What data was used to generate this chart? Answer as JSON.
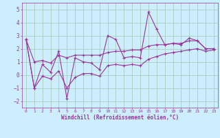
{
  "title": "",
  "xlabel": "Windchill (Refroidissement éolien,°C)",
  "bg_color": "#cceeff",
  "grid_color": "#aaccbb",
  "line_color": "#993399",
  "xlim": [
    -0.5,
    23.5
  ],
  "ylim": [
    -2.5,
    5.5
  ],
  "xticks": [
    0,
    1,
    2,
    3,
    4,
    5,
    6,
    7,
    8,
    9,
    10,
    11,
    12,
    13,
    14,
    15,
    16,
    17,
    18,
    19,
    20,
    21,
    22,
    23
  ],
  "yticks": [
    -2,
    -1,
    0,
    1,
    2,
    3,
    4,
    5
  ],
  "x": [
    0,
    1,
    2,
    3,
    4,
    5,
    6,
    7,
    8,
    9,
    10,
    11,
    12,
    13,
    14,
    15,
    16,
    17,
    18,
    19,
    20,
    21,
    22,
    23
  ],
  "y_main": [
    2.7,
    -1.0,
    0.8,
    0.2,
    1.8,
    -1.8,
    1.3,
    1.0,
    0.9,
    0.4,
    3.0,
    2.7,
    1.3,
    1.4,
    1.3,
    4.8,
    3.5,
    2.3,
    2.4,
    2.3,
    2.8,
    2.6,
    2.0,
    2.0
  ],
  "y_upper": [
    2.7,
    1.0,
    1.1,
    0.9,
    1.5,
    1.3,
    1.5,
    1.5,
    1.5,
    1.5,
    1.7,
    1.8,
    1.8,
    1.9,
    1.9,
    2.2,
    2.3,
    2.3,
    2.4,
    2.4,
    2.6,
    2.6,
    2.0,
    2.0
  ],
  "y_lower": [
    2.7,
    -1.0,
    -0.1,
    -0.3,
    0.3,
    -1.0,
    -0.2,
    0.1,
    0.1,
    -0.1,
    0.7,
    0.8,
    0.7,
    0.8,
    0.7,
    1.2,
    1.4,
    1.6,
    1.7,
    1.8,
    1.9,
    2.0,
    1.8,
    1.9
  ]
}
